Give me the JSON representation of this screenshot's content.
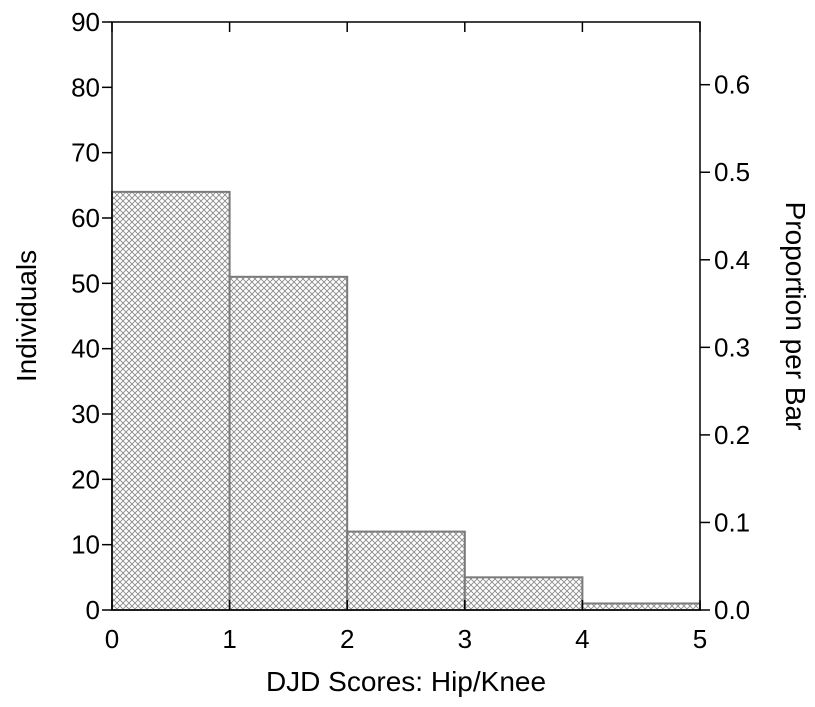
{
  "chart_data": {
    "type": "bar",
    "histogram": true,
    "bins": [
      {
        "x0": 0,
        "x1": 1,
        "value": 64
      },
      {
        "x0": 1,
        "x1": 2,
        "value": 51
      },
      {
        "x0": 2,
        "x1": 3,
        "value": 12
      },
      {
        "x0": 3,
        "x1": 4,
        "value": 5
      },
      {
        "x0": 4,
        "x1": 5,
        "value": 1
      }
    ],
    "xlabel": "DJD Scores: Hip/Knee",
    "ylabel": "Individuals",
    "y2label": "Proportion per Bar",
    "xlim": [
      0,
      5
    ],
    "ylim": [
      0,
      90
    ],
    "y2lim": [
      0,
      0.6716
    ],
    "x_ticks": [
      0,
      1,
      2,
      3,
      4,
      5
    ],
    "x_tick_labels": [
      "0",
      "1",
      "2",
      "3",
      "4",
      "5"
    ],
    "y_ticks": [
      0,
      10,
      20,
      30,
      40,
      50,
      60,
      70,
      80,
      90
    ],
    "y_tick_labels": [
      "0",
      "10",
      "20",
      "30",
      "40",
      "50",
      "60",
      "70",
      "80",
      "90"
    ],
    "y2_ticks": [
      0.0,
      0.1,
      0.2,
      0.3,
      0.4,
      0.5,
      0.6
    ],
    "y2_tick_labels": [
      "0.0",
      "0.1",
      "0.2",
      "0.3",
      "0.4",
      "0.5",
      "0.6"
    ],
    "grid": false,
    "bar_fill": "crosshatch",
    "bar_color": "#7a7a7a",
    "axis_color": "#000000"
  }
}
